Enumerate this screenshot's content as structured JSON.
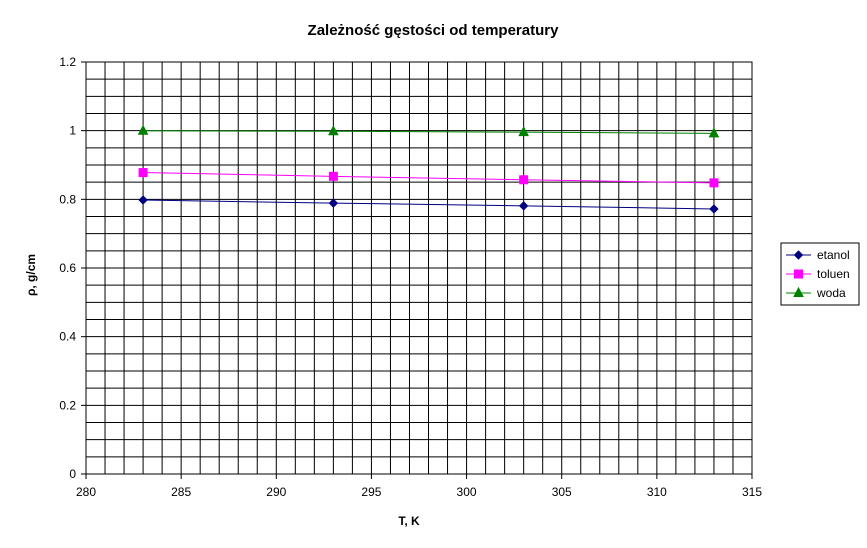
{
  "chart_data": {
    "type": "line",
    "title": "Zależność gęstości od temperatury",
    "xlabel": "T, K",
    "ylabel": "ρ, g/cm",
    "xlim": [
      280,
      315
    ],
    "ylim": [
      0,
      1.2
    ],
    "x_ticks": [
      "280",
      "285",
      "290",
      "295",
      "300",
      "305",
      "310",
      "315"
    ],
    "y_ticks": [
      "0",
      "0.2",
      "0.4",
      "0.6",
      "0.8",
      "1",
      "1.2"
    ],
    "grid": true,
    "legend_position": "right",
    "x": [
      283,
      293,
      303,
      313
    ],
    "series": [
      {
        "name": "etanol",
        "values": [
          0.798,
          0.789,
          0.781,
          0.772
        ],
        "color": "#000080",
        "marker": "diamond"
      },
      {
        "name": "toluen",
        "values": [
          0.878,
          0.867,
          0.857,
          0.848
        ],
        "color": "#ff00ff",
        "marker": "square"
      },
      {
        "name": "woda",
        "values": [
          0.9997,
          0.9982,
          0.9957,
          0.9922
        ],
        "color": "#008000",
        "marker": "triangle"
      }
    ]
  }
}
